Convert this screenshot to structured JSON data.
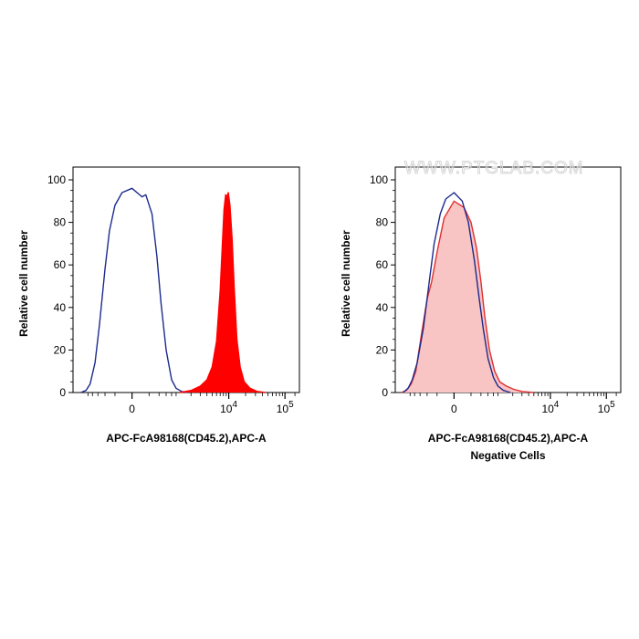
{
  "watermark": "WWW.PTGLAB.COM",
  "chart_data": [
    {
      "type": "area",
      "xlabel": "APC-FcA98168(CD45.2),APC-A",
      "ylabel": "Relative cell number",
      "subtitle": "",
      "x_scale": "biexponential",
      "ylim": [
        0,
        100
      ],
      "y_ticks": [
        "0",
        "20",
        "40",
        "60",
        "80",
        "100"
      ],
      "x_ticks": [
        {
          "base": "0",
          "exp": ""
        },
        {
          "base": "10",
          "exp": "4"
        },
        {
          "base": "10",
          "exp": "5"
        }
      ],
      "series": [
        {
          "color": "#1c2a8c",
          "fill": "none",
          "points": [
            [
              -1400,
              0
            ],
            [
              -1100,
              1
            ],
            [
              -900,
              4
            ],
            [
              -700,
              14
            ],
            [
              -550,
              32
            ],
            [
              -400,
              58
            ],
            [
              -300,
              76
            ],
            [
              -200,
              88
            ],
            [
              -100,
              94
            ],
            [
              0,
              96
            ],
            [
              100,
              92
            ],
            [
              150,
              93
            ],
            [
              250,
              84
            ],
            [
              350,
              64
            ],
            [
              450,
              42
            ],
            [
              600,
              20
            ],
            [
              800,
              6
            ],
            [
              1000,
              2
            ],
            [
              1300,
              0.5
            ],
            [
              1800,
              0
            ]
          ]
        },
        {
          "color": "#ff0000",
          "fill": "#ff0000",
          "points": [
            [
              1200,
              0
            ],
            [
              2000,
              1
            ],
            [
              3000,
              3
            ],
            [
              4000,
              6
            ],
            [
              5000,
              12
            ],
            [
              6000,
              24
            ],
            [
              7000,
              48
            ],
            [
              7600,
              68
            ],
            [
              8200,
              86
            ],
            [
              8800,
              93
            ],
            [
              9300,
              92
            ],
            [
              9800,
              94
            ],
            [
              10500,
              88
            ],
            [
              11500,
              72
            ],
            [
              12500,
              50
            ],
            [
              14000,
              25
            ],
            [
              16000,
              12
            ],
            [
              19000,
              5
            ],
            [
              24000,
              2
            ],
            [
              32000,
              0.5
            ],
            [
              45000,
              0
            ]
          ]
        }
      ]
    },
    {
      "type": "area",
      "xlabel": "APC-FcA98168(CD45.2),APC-A",
      "ylabel": "Relative cell number",
      "subtitle": "Negative Cells",
      "x_scale": "biexponential",
      "ylim": [
        0,
        100
      ],
      "y_ticks": [
        "0",
        "20",
        "40",
        "60",
        "80",
        "100"
      ],
      "x_ticks": [
        {
          "base": "0",
          "exp": ""
        },
        {
          "base": "10",
          "exp": "4"
        },
        {
          "base": "10",
          "exp": "5"
        }
      ],
      "series": [
        {
          "color": "#e03030",
          "fill": "#f8c4c4",
          "points": [
            [
              -1500,
              0
            ],
            [
              -1200,
              1
            ],
            [
              -950,
              4
            ],
            [
              -750,
              10
            ],
            [
              -550,
              28
            ],
            [
              -400,
              44
            ],
            [
              -300,
              52
            ],
            [
              -200,
              66
            ],
            [
              -100,
              82
            ],
            [
              0,
              90
            ],
            [
              100,
              87
            ],
            [
              200,
              80
            ],
            [
              300,
              68
            ],
            [
              400,
              52
            ],
            [
              500,
              36
            ],
            [
              650,
              20
            ],
            [
              850,
              10
            ],
            [
              1100,
              5
            ],
            [
              1500,
              3
            ],
            [
              2100,
              1.5
            ],
            [
              3000,
              0.5
            ],
            [
              5000,
              0
            ]
          ]
        },
        {
          "color": "#1c2a8c",
          "fill": "none",
          "points": [
            [
              -1400,
              0
            ],
            [
              -1100,
              2
            ],
            [
              -900,
              6
            ],
            [
              -700,
              14
            ],
            [
              -500,
              30
            ],
            [
              -350,
              52
            ],
            [
              -250,
              70
            ],
            [
              -150,
              84
            ],
            [
              -80,
              91
            ],
            [
              0,
              94
            ],
            [
              80,
              90
            ],
            [
              160,
              80
            ],
            [
              260,
              62
            ],
            [
              360,
              44
            ],
            [
              460,
              30
            ],
            [
              600,
              16
            ],
            [
              800,
              7
            ],
            [
              1000,
              3
            ],
            [
              1300,
              1
            ],
            [
              1800,
              0
            ]
          ]
        }
      ]
    }
  ]
}
